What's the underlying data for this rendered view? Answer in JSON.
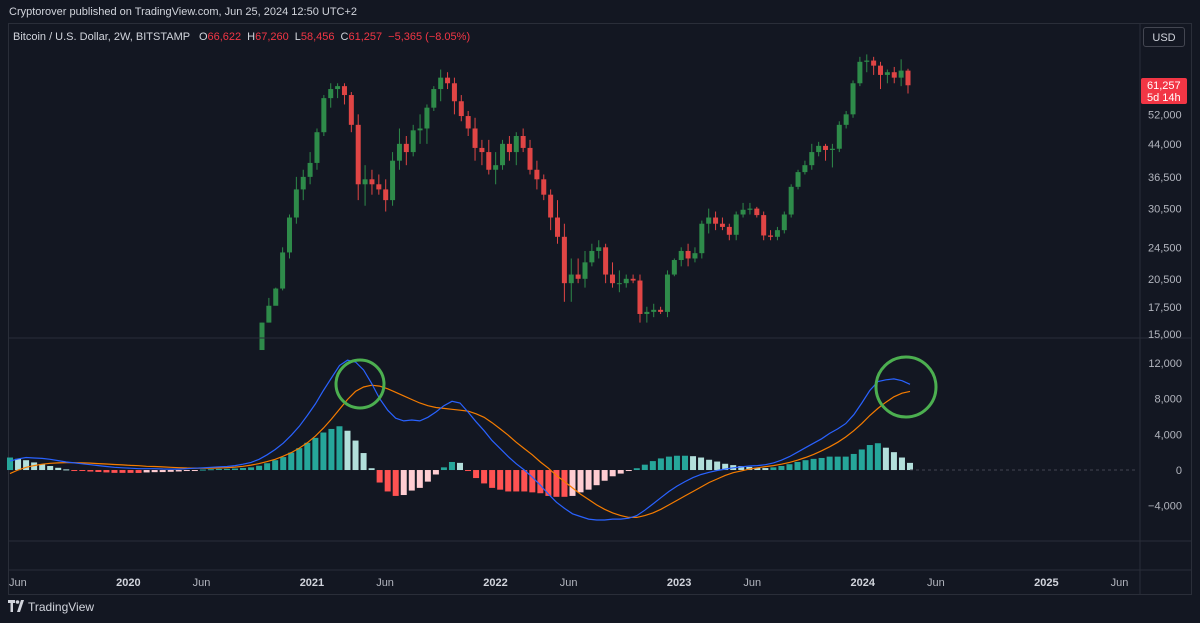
{
  "header": {
    "published": "Cryptorover published on TradingView.com, Jun 25, 2024 12:50 UTC+2"
  },
  "legend": {
    "symbol": "Bitcoin / U.S. Dollar, 2W, BITSTAMP",
    "open_label": "O",
    "open": "66,622",
    "high_label": "H",
    "high": "67,260",
    "low_label": "L",
    "low": "58,456",
    "close_label": "C",
    "close": "61,257",
    "change": "−5,365 (−8.05%)"
  },
  "currency_button": "USD",
  "price_tag": {
    "price": "61,257",
    "countdown": "5d 14h"
  },
  "footer": {
    "brand": "TradingView"
  },
  "colors": {
    "up": "#26a69a",
    "down": "#f23645",
    "candle_up": "#2e8b4a",
    "candle_down": "#e04545",
    "macd": "#2962ff",
    "signal": "#f57c00",
    "hist_up_strong": "#26a69a",
    "hist_up_weak": "#b2dfdb",
    "hist_down_strong": "#ff5252",
    "hist_down_weak": "#ffcdd2",
    "highlight": "#4caf50"
  },
  "chart_data": [
    {
      "type": "candlestick",
      "scale": "log",
      "price_axis_ticks": [
        15000,
        17500,
        20500,
        24500,
        30500,
        36500,
        44000,
        52000
      ],
      "price_axis_labels": [
        "15,000",
        "17,500",
        "20,500",
        "24,500",
        "30,500",
        "36,500",
        "44,000",
        "52,000"
      ],
      "ylim": [
        15000,
        74000
      ],
      "time_axis_labels": [
        "Jun",
        "2020",
        "Jun",
        "2021",
        "Jun",
        "2022",
        "Jun",
        "2023",
        "Jun",
        "2024",
        "Jun",
        "2025",
        "Jun"
      ],
      "time_axis_bold": [
        false,
        true,
        false,
        true,
        false,
        true,
        false,
        true,
        false,
        true,
        false,
        true,
        false
      ],
      "time_axis_months": [
        0,
        7,
        12,
        19,
        24,
        31,
        36,
        43,
        48,
        55,
        60,
        67,
        72
      ],
      "candles": [
        [
          13.7,
          13.7,
          16,
          16
        ],
        [
          16,
          16,
          18.4,
          17.6
        ],
        [
          17.6,
          18,
          19.5,
          19.4
        ],
        [
          19.4,
          19.2,
          24.5,
          23.8
        ],
        [
          23.8,
          23,
          29.5,
          29
        ],
        [
          29,
          28,
          36.5,
          34
        ],
        [
          34,
          32,
          38,
          36.5
        ],
        [
          36.5,
          35,
          42,
          39.5
        ],
        [
          39.5,
          38,
          48,
          47
        ],
        [
          47,
          46,
          58,
          57
        ],
        [
          57,
          54,
          62,
          60
        ],
        [
          60,
          57,
          62,
          61
        ],
        [
          61,
          55,
          62,
          58
        ],
        [
          58,
          47,
          59,
          49
        ],
        [
          49,
          32,
          52,
          35
        ],
        [
          35,
          31,
          39,
          36
        ],
        [
          36,
          33,
          38,
          35
        ],
        [
          35,
          33,
          37,
          34
        ],
        [
          34,
          30,
          36,
          32
        ],
        [
          32,
          31,
          42,
          40
        ],
        [
          40,
          38,
          48,
          44
        ],
        [
          44,
          39,
          46,
          42
        ],
        [
          42,
          41,
          49,
          47.5
        ],
        [
          47.5,
          44,
          52,
          48
        ],
        [
          48,
          44,
          55,
          54
        ],
        [
          54,
          53,
          61,
          60
        ],
        [
          60,
          56,
          67,
          64
        ],
        [
          64,
          60,
          66,
          62
        ],
        [
          62,
          52,
          64,
          56
        ],
        [
          56,
          50,
          58,
          51.5
        ],
        [
          51.5,
          46,
          53,
          48
        ],
        [
          48,
          40,
          51,
          43
        ],
        [
          43,
          39,
          45,
          42
        ],
        [
          42,
          37,
          45,
          38
        ],
        [
          38,
          35,
          42,
          39
        ],
        [
          39,
          38,
          45,
          44
        ],
        [
          44,
          40,
          46,
          42
        ],
        [
          42,
          39,
          47,
          46
        ],
        [
          46,
          42,
          48,
          43
        ],
        [
          43,
          37,
          45,
          38
        ],
        [
          38,
          34,
          40,
          36
        ],
        [
          36,
          32,
          37,
          33
        ],
        [
          33,
          27,
          34,
          29
        ],
        [
          29,
          25,
          32,
          26
        ],
        [
          26,
          18,
          28,
          20
        ],
        [
          20,
          18,
          23,
          21
        ],
        [
          21,
          20,
          23,
          20.5
        ],
        [
          20.5,
          19.5,
          24,
          22.5
        ],
        [
          22.5,
          22,
          25,
          24
        ],
        [
          24,
          23,
          25.5,
          24.5
        ],
        [
          24.5,
          20,
          25,
          21
        ],
        [
          21,
          19.5,
          22.5,
          20
        ],
        [
          20,
          19,
          21.5,
          20
        ],
        [
          20,
          19.5,
          21,
          20.5
        ],
        [
          20.5,
          20,
          21,
          20.3
        ],
        [
          20.3,
          16,
          21,
          16.8
        ],
        [
          16.8,
          16,
          17.5,
          17
        ],
        [
          17,
          16.5,
          17.8,
          17.2
        ],
        [
          17.2,
          16.8,
          17.5,
          17
        ],
        [
          17,
          16.5,
          21.5,
          21
        ],
        [
          21,
          20.8,
          23,
          22.8
        ],
        [
          22.8,
          22,
          24.5,
          24
        ],
        [
          24,
          22,
          25,
          23
        ],
        [
          23,
          22.5,
          24.5,
          23.7
        ],
        [
          23.7,
          23,
          28.5,
          28
        ],
        [
          28,
          26.5,
          30.5,
          29
        ],
        [
          29,
          27,
          30,
          28
        ],
        [
          28,
          27,
          29,
          27.5
        ],
        [
          27.5,
          25.5,
          28,
          26.3
        ],
        [
          26.3,
          25.5,
          30,
          29.5
        ],
        [
          29.5,
          29,
          31.5,
          30.3
        ],
        [
          30.3,
          29.5,
          31.5,
          30.5
        ],
        [
          30.5,
          29,
          30.8,
          29.4
        ],
        [
          29.4,
          25.5,
          30,
          26.2
        ],
        [
          26.2,
          25.5,
          27,
          26
        ],
        [
          26,
          25.5,
          27.5,
          27
        ],
        [
          27,
          26.5,
          30,
          29.5
        ],
        [
          29.5,
          29,
          35,
          34.5
        ],
        [
          34.5,
          34,
          38,
          37.5
        ],
        [
          37.5,
          37,
          40,
          39
        ],
        [
          39,
          38,
          44,
          42
        ],
        [
          42,
          41,
          44.5,
          43.5
        ],
        [
          43.5,
          40,
          44,
          42.5
        ],
        [
          42.5,
          38.5,
          44,
          42.8
        ],
        [
          42.8,
          42,
          50,
          49
        ],
        [
          49,
          48,
          53,
          52
        ],
        [
          52,
          51,
          63,
          62
        ],
        [
          62,
          61,
          72,
          70
        ],
        [
          70,
          66,
          73,
          70.5
        ],
        [
          70.5,
          65,
          72,
          68.5
        ],
        [
          68.5,
          60,
          70,
          65
        ],
        [
          65,
          62,
          67,
          66
        ],
        [
          66,
          62,
          68,
          64
        ],
        [
          64,
          61,
          71,
          66.6
        ],
        [
          66.6,
          58.5,
          67.3,
          61.3
        ]
      ]
    },
    {
      "type": "macd",
      "value_axis_ticks": [
        12000,
        8000,
        4000,
        0,
        -4000
      ],
      "value_axis_labels": [
        "12,000",
        "8,000",
        "4,000",
        "0",
        "−4,000"
      ],
      "ylim": [
        -7500,
        14000
      ],
      "macd": [
        1000,
        1250,
        1400,
        1350,
        1300,
        1200,
        1050,
        900,
        800,
        700,
        600,
        500,
        400,
        300,
        250,
        200,
        150,
        150,
        150,
        120,
        100,
        100,
        150,
        200,
        250,
        300,
        350,
        400,
        500,
        650,
        850,
        1200,
        1700,
        2300,
        3000,
        3900,
        4900,
        6100,
        7400,
        8900,
        10300,
        11700,
        12300,
        12100,
        11200,
        9700,
        8000,
        6700,
        5800,
        5500,
        5600,
        5500,
        5900,
        6500,
        7200,
        7700,
        7500,
        6500,
        5400,
        4400,
        3300,
        2400,
        1500,
        700,
        0,
        -800,
        -1700,
        -2700,
        -3600,
        -4300,
        -4900,
        -5200,
        -5500,
        -5600,
        -5600,
        -5500,
        -5500,
        -5400,
        -5100,
        -4500,
        -3800,
        -3100,
        -2400,
        -1800,
        -1300,
        -850,
        -500,
        -250,
        -50,
        100,
        250,
        350,
        450,
        500,
        600,
        800,
        1100,
        1500,
        2000,
        2500,
        3000,
        3500,
        4100,
        4600,
        5200,
        6200,
        7500,
        8900,
        9900,
        10100,
        10200,
        10000,
        9600
      ],
      "signal": [
        -400,
        0,
        300,
        500,
        650,
        750,
        800,
        830,
        820,
        800,
        770,
        720,
        670,
        620,
        570,
        520,
        480,
        420,
        390,
        350,
        300,
        260,
        230,
        210,
        200,
        210,
        230,
        270,
        330,
        420,
        550,
        720,
        940,
        1200,
        1550,
        1950,
        2450,
        3050,
        3800,
        4700,
        5700,
        6800,
        7900,
        8800,
        9300,
        9500,
        9400,
        9100,
        8700,
        8300,
        7900,
        7500,
        7200,
        7000,
        6900,
        6800,
        6700,
        6600,
        6300,
        5900,
        5300,
        4600,
        3900,
        3100,
        2400,
        1700,
        900,
        200,
        -600,
        -1300,
        -2000,
        -2700,
        -3300,
        -3900,
        -4400,
        -4800,
        -5100,
        -5300,
        -5300,
        -5100,
        -4800,
        -4400,
        -3900,
        -3400,
        -2900,
        -2400,
        -1900,
        -1400,
        -1000,
        -600,
        -300,
        -100,
        100,
        250,
        380,
        500,
        650,
        850,
        1100,
        1400,
        1750,
        2150,
        2600,
        3100,
        3700,
        4400,
        5200,
        6100,
        6900,
        7600,
        8200,
        8600,
        8800
      ]
    }
  ]
}
